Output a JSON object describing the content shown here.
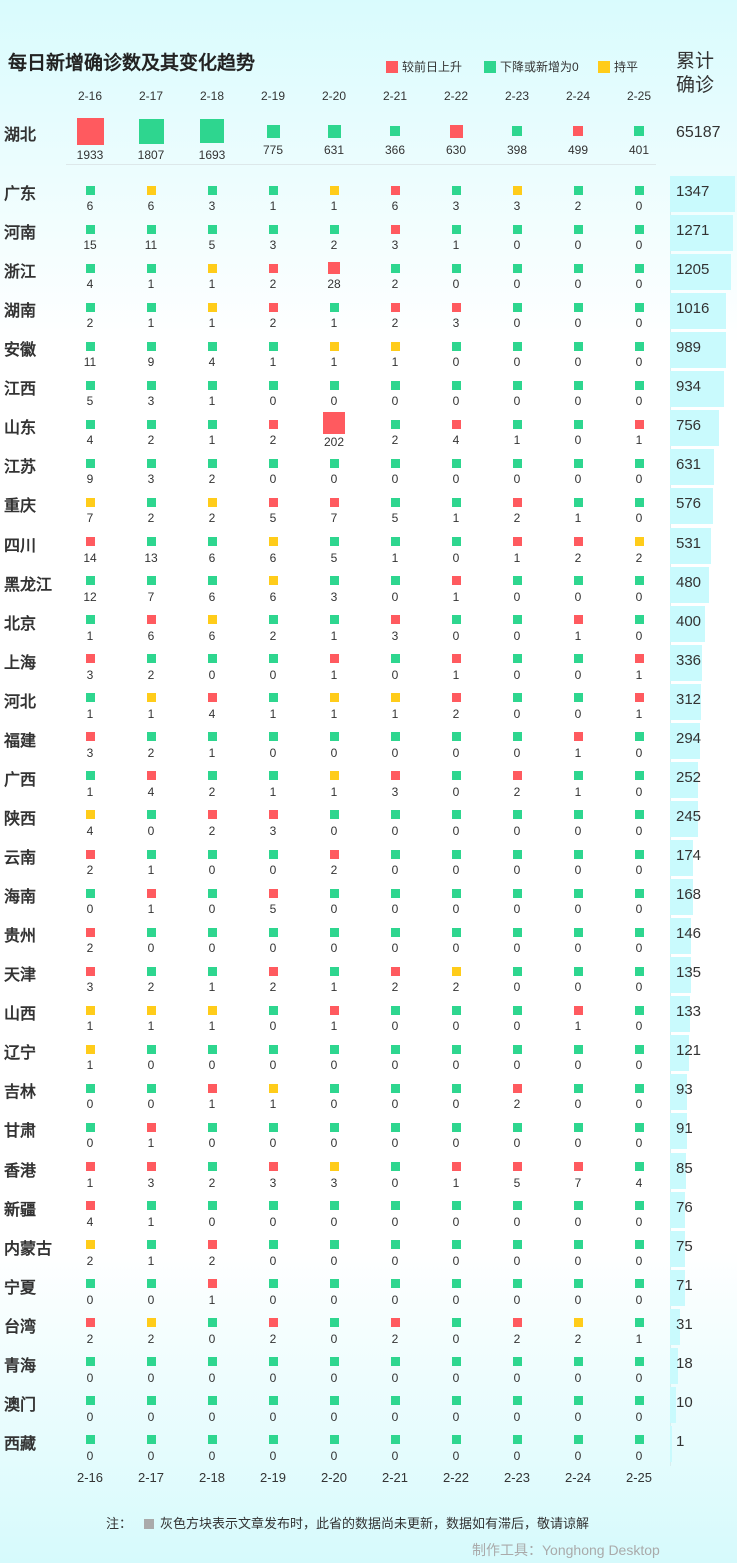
{
  "title": "每日新增确诊数及其变化趋势",
  "legend": [
    {
      "label": "较前日上升",
      "color": "#ff5a5f"
    },
    {
      "label": "下降或新增为0",
      "color": "#2ed68f"
    },
    {
      "label": "持平",
      "color": "#ffcc1a"
    }
  ],
  "total_header": "累计确诊",
  "note_prefix": "注：",
  "note_text": "灰色方块表示文章发布时，此省的数据尚未更新，数据如有滞后，敬请谅解",
  "footer": "制作工具：Yonghong Desktop",
  "chart_data": {
    "type": "heatmap",
    "title": "每日新增确诊数及其变化趋势",
    "dates": [
      "2-16",
      "2-17",
      "2-18",
      "2-19",
      "2-20",
      "2-21",
      "2-22",
      "2-23",
      "2-24",
      "2-25"
    ],
    "colors": {
      "up": "#ff5a5f",
      "down": "#2ed68f",
      "flat": "#ffcc1a",
      "stale": "#aaaaaa"
    },
    "hubei": {
      "name": "湖北",
      "values": [
        1933,
        1807,
        1693,
        775,
        631,
        366,
        630,
        398,
        499,
        401
      ],
      "states": [
        "up",
        "down",
        "down",
        "down",
        "down",
        "down",
        "up",
        "down",
        "up",
        "down"
      ],
      "total": 65187
    },
    "provinces": [
      {
        "name": "广东",
        "values": [
          6,
          6,
          3,
          1,
          1,
          6,
          3,
          3,
          2,
          0
        ],
        "states": [
          "down",
          "flat",
          "down",
          "down",
          "flat",
          "up",
          "down",
          "flat",
          "down",
          "down"
        ],
        "total": 1347
      },
      {
        "name": "河南",
        "values": [
          15,
          11,
          5,
          3,
          2,
          3,
          1,
          0,
          0,
          0
        ],
        "states": [
          "down",
          "down",
          "down",
          "down",
          "down",
          "up",
          "down",
          "down",
          "down",
          "down"
        ],
        "total": 1271
      },
      {
        "name": "浙江",
        "values": [
          4,
          1,
          1,
          2,
          28,
          2,
          0,
          0,
          0,
          0
        ],
        "states": [
          "down",
          "down",
          "flat",
          "up",
          "up",
          "down",
          "down",
          "down",
          "down",
          "down"
        ],
        "total": 1205
      },
      {
        "name": "湖南",
        "values": [
          2,
          1,
          1,
          2,
          1,
          2,
          3,
          0,
          0,
          0
        ],
        "states": [
          "down",
          "down",
          "flat",
          "up",
          "down",
          "up",
          "up",
          "down",
          "down",
          "down"
        ],
        "total": 1016
      },
      {
        "name": "安徽",
        "values": [
          11,
          9,
          4,
          1,
          1,
          1,
          0,
          0,
          0,
          0
        ],
        "states": [
          "down",
          "down",
          "down",
          "down",
          "flat",
          "flat",
          "down",
          "down",
          "down",
          "down"
        ],
        "total": 989
      },
      {
        "name": "江西",
        "values": [
          5,
          3,
          1,
          0,
          0,
          0,
          0,
          0,
          0,
          0
        ],
        "states": [
          "down",
          "down",
          "down",
          "down",
          "down",
          "down",
          "down",
          "down",
          "down",
          "down"
        ],
        "total": 934
      },
      {
        "name": "山东",
        "values": [
          4,
          2,
          1,
          2,
          202,
          2,
          4,
          1,
          0,
          1
        ],
        "states": [
          "down",
          "down",
          "down",
          "up",
          "up",
          "down",
          "up",
          "down",
          "down",
          "up"
        ],
        "total": 756
      },
      {
        "name": "江苏",
        "values": [
          9,
          3,
          2,
          0,
          0,
          0,
          0,
          0,
          0,
          0
        ],
        "states": [
          "down",
          "down",
          "down",
          "down",
          "down",
          "down",
          "down",
          "down",
          "down",
          "down"
        ],
        "total": 631
      },
      {
        "name": "重庆",
        "values": [
          7,
          2,
          2,
          5,
          7,
          5,
          1,
          2,
          1,
          0
        ],
        "states": [
          "flat",
          "down",
          "flat",
          "up",
          "up",
          "down",
          "down",
          "up",
          "down",
          "down"
        ],
        "total": 576
      },
      {
        "name": "四川",
        "values": [
          14,
          13,
          6,
          6,
          5,
          1,
          0,
          1,
          2,
          2
        ],
        "states": [
          "up",
          "down",
          "down",
          "flat",
          "down",
          "down",
          "down",
          "up",
          "up",
          "flat"
        ],
        "total": 531
      },
      {
        "name": "黑龙江",
        "values": [
          12,
          7,
          6,
          6,
          3,
          0,
          1,
          0,
          0,
          0
        ],
        "states": [
          "down",
          "down",
          "down",
          "flat",
          "down",
          "down",
          "up",
          "down",
          "down",
          "down"
        ],
        "total": 480
      },
      {
        "name": "北京",
        "values": [
          1,
          6,
          6,
          2,
          1,
          3,
          0,
          0,
          1,
          0
        ],
        "states": [
          "down",
          "up",
          "flat",
          "down",
          "down",
          "up",
          "down",
          "down",
          "up",
          "down"
        ],
        "total": 400
      },
      {
        "name": "上海",
        "values": [
          3,
          2,
          0,
          0,
          1,
          0,
          1,
          0,
          0,
          1
        ],
        "states": [
          "up",
          "down",
          "down",
          "down",
          "up",
          "down",
          "up",
          "down",
          "down",
          "up"
        ],
        "total": 336
      },
      {
        "name": "河北",
        "values": [
          1,
          1,
          4,
          1,
          1,
          1,
          2,
          0,
          0,
          1
        ],
        "states": [
          "down",
          "flat",
          "up",
          "down",
          "flat",
          "flat",
          "up",
          "down",
          "down",
          "up"
        ],
        "total": 312
      },
      {
        "name": "福建",
        "values": [
          3,
          2,
          1,
          0,
          0,
          0,
          0,
          0,
          1,
          0
        ],
        "states": [
          "up",
          "down",
          "down",
          "down",
          "down",
          "down",
          "down",
          "down",
          "up",
          "down"
        ],
        "total": 294
      },
      {
        "name": "广西",
        "values": [
          1,
          4,
          2,
          1,
          1,
          3,
          0,
          2,
          1,
          0
        ],
        "states": [
          "down",
          "up",
          "down",
          "down",
          "flat",
          "up",
          "down",
          "up",
          "down",
          "down"
        ],
        "total": 252
      },
      {
        "name": "陕西",
        "values": [
          4,
          0,
          2,
          3,
          0,
          0,
          0,
          0,
          0,
          0
        ],
        "states": [
          "flat",
          "down",
          "up",
          "up",
          "down",
          "down",
          "down",
          "down",
          "down",
          "down"
        ],
        "total": 245
      },
      {
        "name": "云南",
        "values": [
          2,
          1,
          0,
          0,
          2,
          0,
          0,
          0,
          0,
          0
        ],
        "states": [
          "up",
          "down",
          "down",
          "down",
          "up",
          "down",
          "down",
          "down",
          "down",
          "down"
        ],
        "total": 174
      },
      {
        "name": "海南",
        "values": [
          0,
          1,
          0,
          5,
          0,
          0,
          0,
          0,
          0,
          0
        ],
        "states": [
          "down",
          "up",
          "down",
          "up",
          "down",
          "down",
          "down",
          "down",
          "down",
          "down"
        ],
        "total": 168
      },
      {
        "name": "贵州",
        "values": [
          2,
          0,
          0,
          0,
          0,
          0,
          0,
          0,
          0,
          0
        ],
        "states": [
          "up",
          "down",
          "down",
          "down",
          "down",
          "down",
          "down",
          "down",
          "down",
          "down"
        ],
        "total": 146
      },
      {
        "name": "天津",
        "values": [
          3,
          2,
          1,
          2,
          1,
          2,
          2,
          0,
          0,
          0
        ],
        "states": [
          "up",
          "down",
          "down",
          "up",
          "down",
          "up",
          "flat",
          "down",
          "down",
          "down"
        ],
        "total": 135
      },
      {
        "name": "山西",
        "values": [
          1,
          1,
          1,
          0,
          1,
          0,
          0,
          0,
          1,
          0
        ],
        "states": [
          "flat",
          "flat",
          "flat",
          "down",
          "up",
          "down",
          "down",
          "down",
          "up",
          "down"
        ],
        "total": 133
      },
      {
        "name": "辽宁",
        "values": [
          1,
          0,
          0,
          0,
          0,
          0,
          0,
          0,
          0,
          0
        ],
        "states": [
          "flat",
          "down",
          "down",
          "down",
          "down",
          "down",
          "down",
          "down",
          "down",
          "down"
        ],
        "total": 121
      },
      {
        "name": "吉林",
        "values": [
          0,
          0,
          1,
          1,
          0,
          0,
          0,
          2,
          0,
          0
        ],
        "states": [
          "down",
          "down",
          "up",
          "flat",
          "down",
          "down",
          "down",
          "up",
          "down",
          "down"
        ],
        "total": 93
      },
      {
        "name": "甘肃",
        "values": [
          0,
          1,
          0,
          0,
          0,
          0,
          0,
          0,
          0,
          0
        ],
        "states": [
          "down",
          "up",
          "down",
          "down",
          "down",
          "down",
          "down",
          "down",
          "down",
          "down"
        ],
        "total": 91
      },
      {
        "name": "香港",
        "values": [
          1,
          3,
          2,
          3,
          3,
          0,
          1,
          5,
          7,
          4
        ],
        "states": [
          "up",
          "up",
          "down",
          "up",
          "flat",
          "down",
          "up",
          "up",
          "up",
          "down"
        ],
        "total": 85
      },
      {
        "name": "新疆",
        "values": [
          4,
          1,
          0,
          0,
          0,
          0,
          0,
          0,
          0,
          0
        ],
        "states": [
          "up",
          "down",
          "down",
          "down",
          "down",
          "down",
          "down",
          "down",
          "down",
          "down"
        ],
        "total": 76
      },
      {
        "name": "内蒙古",
        "values": [
          2,
          1,
          2,
          0,
          0,
          0,
          0,
          0,
          0,
          0
        ],
        "states": [
          "flat",
          "down",
          "up",
          "down",
          "down",
          "down",
          "down",
          "down",
          "down",
          "down"
        ],
        "total": 75
      },
      {
        "name": "宁夏",
        "values": [
          0,
          0,
          1,
          0,
          0,
          0,
          0,
          0,
          0,
          0
        ],
        "states": [
          "down",
          "down",
          "up",
          "down",
          "down",
          "down",
          "down",
          "down",
          "down",
          "down"
        ],
        "total": 71
      },
      {
        "name": "台湾",
        "values": [
          2,
          2,
          0,
          2,
          0,
          2,
          0,
          2,
          2,
          1
        ],
        "states": [
          "up",
          "flat",
          "down",
          "up",
          "down",
          "up",
          "down",
          "up",
          "flat",
          "down"
        ],
        "total": 31
      },
      {
        "name": "青海",
        "values": [
          0,
          0,
          0,
          0,
          0,
          0,
          0,
          0,
          0,
          0
        ],
        "states": [
          "down",
          "down",
          "down",
          "down",
          "down",
          "down",
          "down",
          "down",
          "down",
          "down"
        ],
        "total": 18
      },
      {
        "name": "澳门",
        "values": [
          0,
          0,
          0,
          0,
          0,
          0,
          0,
          0,
          0,
          0
        ],
        "states": [
          "down",
          "down",
          "down",
          "down",
          "down",
          "down",
          "down",
          "down",
          "down",
          "down"
        ],
        "total": 10
      },
      {
        "name": "西藏",
        "values": [
          0,
          0,
          0,
          0,
          0,
          0,
          0,
          0,
          0,
          0
        ],
        "states": [
          "down",
          "down",
          "down",
          "down",
          "down",
          "down",
          "down",
          "down",
          "down",
          "down"
        ],
        "total": 1
      }
    ]
  }
}
